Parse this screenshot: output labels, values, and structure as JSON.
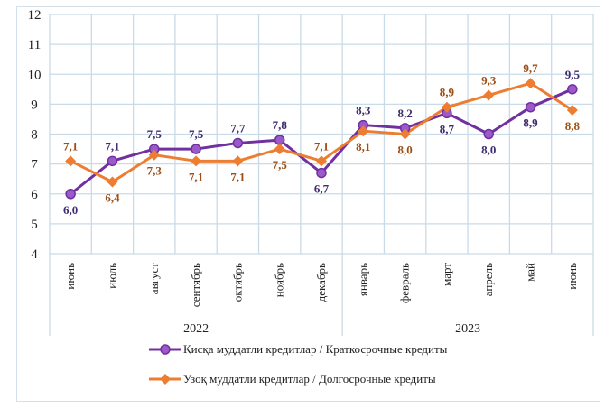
{
  "chart_data": {
    "type": "line",
    "categories": [
      "июнь",
      "июль",
      "август",
      "сентябрь",
      "октябрь",
      "ноябрь",
      "декабрь",
      "январь",
      "февраль",
      "март",
      "апрель",
      "май",
      "июнь"
    ],
    "year_groups": [
      {
        "label": "2022",
        "count": 7
      },
      {
        "label": "2023",
        "count": 6
      }
    ],
    "ylim": [
      4,
      12
    ],
    "yticks": [
      4,
      5,
      6,
      7,
      8,
      9,
      10,
      11,
      12
    ],
    "grid": true,
    "legend_position": "bottom",
    "series": [
      {
        "name": "Қисқа муддатли кредитлар  / Краткосрочные кредиты",
        "color": "#7030a0",
        "label_color": "#3d2c70",
        "marker": "circle",
        "values": [
          6.0,
          7.1,
          7.5,
          7.5,
          7.7,
          7.8,
          6.7,
          8.3,
          8.2,
          8.7,
          8.0,
          8.9,
          9.5
        ],
        "labels": [
          "6,0",
          "7,1",
          "7,5",
          "7,5",
          "7,7",
          "7,8",
          "6,7",
          "8,3",
          "8,2",
          "8,7",
          "8,0",
          "8,9",
          "9,5"
        ]
      },
      {
        "name": "Узоқ муддатли  кредитлар  / Долгосрочные кредиты",
        "color": "#ed7d31",
        "label_color": "#9c4f17",
        "marker": "diamond",
        "values": [
          7.1,
          6.4,
          7.3,
          7.1,
          7.1,
          7.5,
          7.1,
          8.1,
          8.0,
          8.9,
          9.3,
          9.7,
          8.8
        ],
        "labels": [
          "7,1",
          "6,4",
          "7,3",
          "7,1",
          "7,1",
          "7,5",
          "7,1",
          "8,1",
          "8,0",
          "8,9",
          "9,3",
          "9,7",
          "8,8"
        ]
      }
    ]
  }
}
